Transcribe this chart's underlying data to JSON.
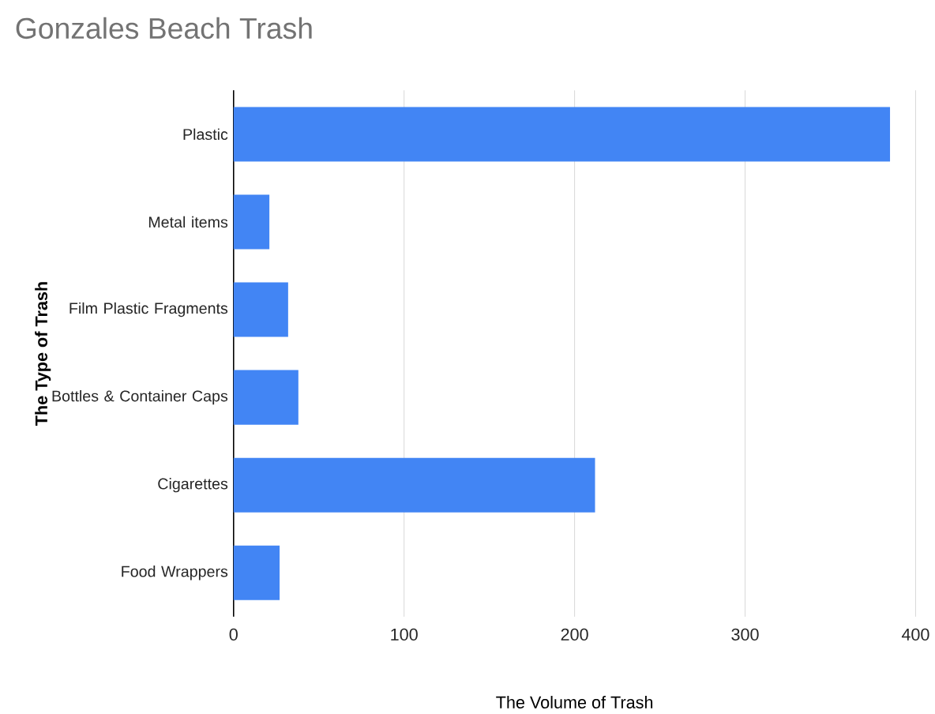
{
  "chart_data": {
    "type": "bar",
    "orientation": "horizontal",
    "title": "Gonzales Beach Trash",
    "xlabel": "The Volume of Trash",
    "ylabel": "The Type of Trash",
    "categories": [
      "Plastic",
      "Metal items",
      "Film Plastic Fragments",
      "Bottles & Container Caps",
      "Cigarettes",
      "Food Wrappers"
    ],
    "values": [
      385,
      21,
      32,
      38,
      212,
      27
    ],
    "color": "#4285f4",
    "xlim": [
      0,
      400
    ],
    "xticks": [
      0,
      100,
      200,
      300,
      400
    ],
    "grid": "x"
  }
}
